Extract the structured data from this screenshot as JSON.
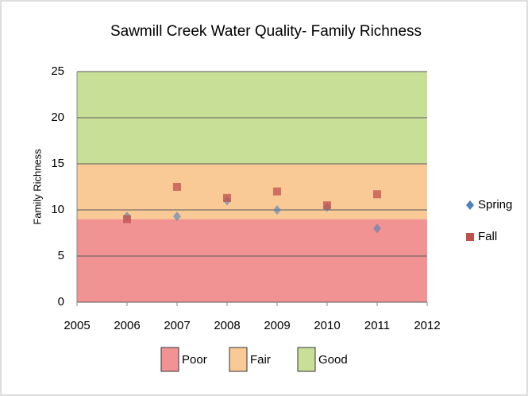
{
  "chart_data": {
    "type": "scatter",
    "title": "Sawmill Creek Water Quality- Family Richness",
    "y_label": "Family Richness",
    "xlim": [
      2005,
      2012
    ],
    "xticks": [
      2005,
      2006,
      2007,
      2008,
      2009,
      2010,
      2011,
      2012
    ],
    "ylim": [
      0,
      25
    ],
    "yticks": [
      0,
      5,
      10,
      15,
      20,
      25
    ],
    "grid": true,
    "bands": [
      {
        "name": "Poor",
        "from": 0,
        "to": 9,
        "color": "#f29393"
      },
      {
        "name": "Fair",
        "from": 9,
        "to": 15,
        "color": "#f9c996"
      },
      {
        "name": "Good",
        "from": 15,
        "to": 25,
        "color": "#c8df98"
      }
    ],
    "x": [
      2006,
      2007,
      2008,
      2009,
      2010,
      2011
    ],
    "series": [
      {
        "name": "Spring",
        "color": "#4f81bd",
        "marker": "diamond",
        "values": [
          9.3,
          9.3,
          11.0,
          10.0,
          10.3,
          8.0
        ]
      },
      {
        "name": "Fall",
        "color": "#c0504d",
        "marker": "square",
        "values": [
          9.0,
          12.5,
          11.3,
          12.0,
          10.5,
          11.7
        ]
      }
    ],
    "legend": "right"
  }
}
